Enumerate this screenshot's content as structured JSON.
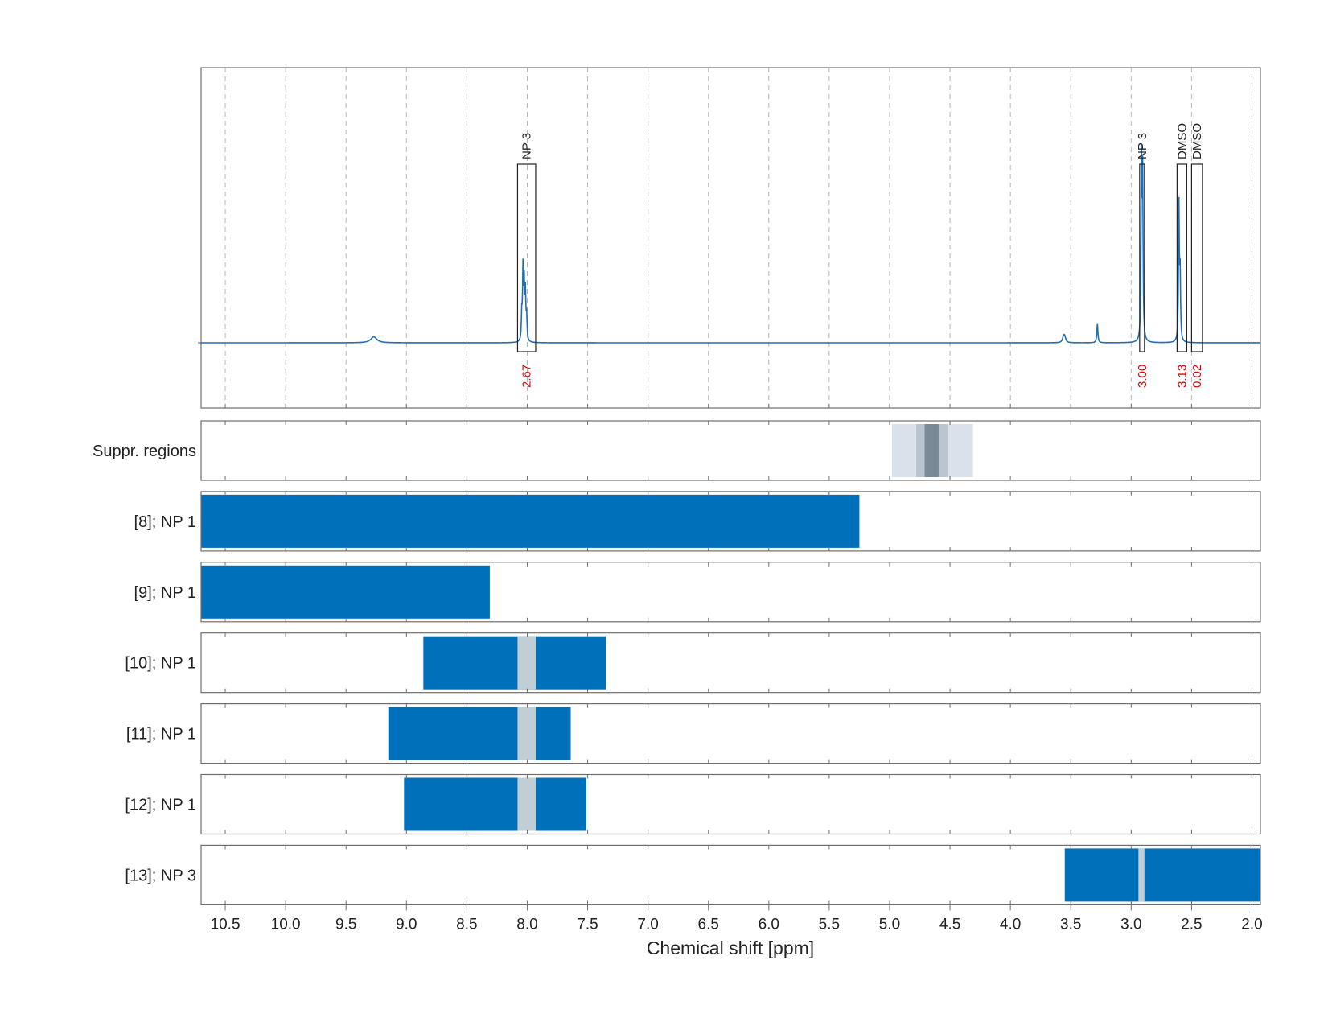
{
  "chart_data": {
    "type": "line",
    "xlabel": "Chemical shift [ppm]",
    "ylabel": "",
    "xlim": [
      10.7,
      1.93
    ],
    "x_ticks": [
      10.5,
      10.0,
      9.5,
      9.0,
      8.5,
      8.0,
      7.5,
      7.0,
      6.5,
      6.0,
      5.5,
      5.0,
      4.5,
      4.0,
      3.5,
      3.0,
      2.5,
      2.0
    ],
    "x_tick_labels": [
      "10.5",
      "10.0",
      "9.5",
      "9.0",
      "8.5",
      "8.0",
      "7.5",
      "7.0",
      "6.5",
      "6.0",
      "5.5",
      "5.0",
      "4.5",
      "4.0",
      "3.5",
      "3.0",
      "2.5",
      "2.0"
    ],
    "grid": true,
    "spectrum": {
      "color": "#1f6fb8",
      "peaks": [
        {
          "x": 9.27,
          "height": 0.022,
          "width": 0.03
        },
        {
          "x": 8.035,
          "height": 0.26,
          "width": 0.004
        },
        {
          "x": 8.025,
          "height": 0.2,
          "width": 0.004
        },
        {
          "x": 8.015,
          "height": 0.17,
          "width": 0.004
        },
        {
          "x": 8.045,
          "height": 0.1,
          "width": 0.004
        },
        {
          "x": 8.005,
          "height": 0.09,
          "width": 0.004
        },
        {
          "x": 3.56,
          "height": 0.02,
          "width": 0.01
        },
        {
          "x": 3.55,
          "height": 0.018,
          "width": 0.01
        },
        {
          "x": 3.28,
          "height": 0.07,
          "width": 0.005
        },
        {
          "x": 2.915,
          "height": 0.64,
          "width": 0.004
        },
        {
          "x": 2.905,
          "height": 0.6,
          "width": 0.004
        },
        {
          "x": 2.605,
          "height": 0.5,
          "width": 0.004
        },
        {
          "x": 2.595,
          "height": 0.25,
          "width": 0.004
        }
      ]
    },
    "annotations": [
      {
        "label": "NP 3",
        "integral": "2.67",
        "x_range": [
          8.08,
          7.93
        ]
      },
      {
        "label": "NP 3",
        "integral": "3.00",
        "x_range": [
          2.93,
          2.89
        ]
      },
      {
        "label": "DMSO",
        "integral": "3.13",
        "x_range": [
          2.62,
          2.54
        ]
      },
      {
        "label": "DMSO",
        "integral": "0.02",
        "x_range": [
          2.5,
          2.41
        ]
      }
    ],
    "tracks": [
      {
        "label": "Suppr. regions",
        "bars": [
          {
            "x0": 4.98,
            "x1": 4.31,
            "color": "#d9e2ea"
          },
          {
            "x0": 4.78,
            "x1": 4.52,
            "color": "#b9c6d1"
          },
          {
            "x0": 4.71,
            "x1": 4.59,
            "color": "#7a8a97"
          }
        ]
      },
      {
        "label": "[8]; NP 1",
        "bars": [
          {
            "x0": 10.7,
            "x1": 5.25,
            "color": "#0070bb"
          }
        ]
      },
      {
        "label": "[9]; NP 1",
        "bars": [
          {
            "x0": 10.7,
            "x1": 8.31,
            "color": "#0070bb"
          }
        ]
      },
      {
        "label": "[10]; NP 1",
        "bars": [
          {
            "x0": 8.86,
            "x1": 7.35,
            "color": "#0070bb"
          },
          {
            "x0": 8.08,
            "x1": 7.93,
            "color": "#c2ced6"
          }
        ]
      },
      {
        "label": "[11]; NP 1",
        "bars": [
          {
            "x0": 9.15,
            "x1": 7.64,
            "color": "#0070bb"
          },
          {
            "x0": 8.08,
            "x1": 7.93,
            "color": "#c2ced6"
          }
        ]
      },
      {
        "label": "[12]; NP 1",
        "bars": [
          {
            "x0": 9.02,
            "x1": 7.51,
            "color": "#0070bb"
          },
          {
            "x0": 8.08,
            "x1": 7.93,
            "color": "#c2ced6"
          }
        ]
      },
      {
        "label": "[13]; NP 3",
        "bars": [
          {
            "x0": 3.55,
            "x1": 1.93,
            "color": "#0070bb"
          },
          {
            "x0": 2.94,
            "x1": 2.89,
            "color": "#c2ced6"
          }
        ]
      }
    ]
  }
}
